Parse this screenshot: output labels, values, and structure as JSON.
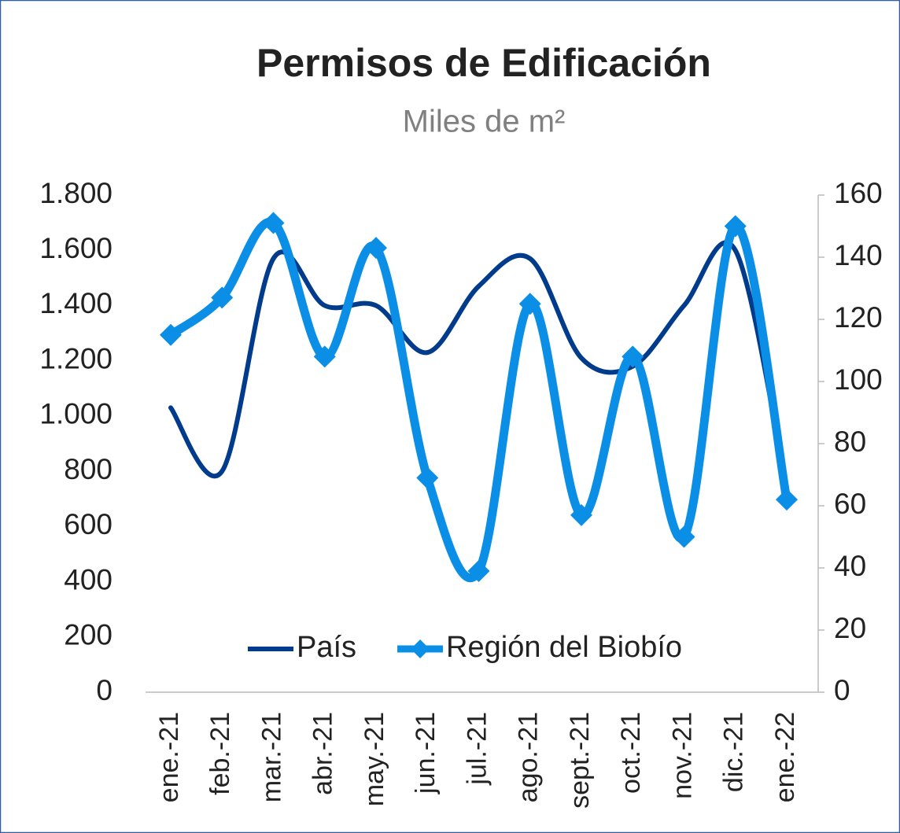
{
  "chart_data": {
    "type": "line",
    "title": "Permisos de Edificación",
    "subtitle": "Miles de m²",
    "categories": [
      "ene.-21",
      "feb.-21",
      "mar.-21",
      "abr.-21",
      "may.-21",
      "jun.-21",
      "jul.-21",
      "ago.-21",
      "sept.-21",
      "oct.-21",
      "nov.-21",
      "dic.-21",
      "ene.-22"
    ],
    "series": [
      {
        "name": "País",
        "color": "#003b8c",
        "values": [
          1030,
          800,
          1570,
          1400,
          1400,
          1230,
          1470,
          1570,
          1210,
          1180,
          1400,
          1600,
          740
        ]
      },
      {
        "name": "Región del Biobío",
        "color": "#0b8fe6",
        "axis": "y2",
        "marker": "diamond",
        "values": [
          115,
          127,
          151,
          108,
          143,
          69,
          39,
          125,
          57,
          108,
          50,
          150,
          62
        ]
      }
    ],
    "ylim": [
      0,
      1800
    ],
    "yticks": [
      0,
      200,
      400,
      600,
      800,
      {
        "value": 1000,
        "label": "1.000"
      },
      {
        "value": 1200,
        "label": "1.200"
      },
      {
        "value": 1400,
        "label": "1.400"
      },
      {
        "value": 1600,
        "label": "1.600"
      },
      {
        "value": 1800,
        "label": "1.800"
      }
    ],
    "y2lim": [
      0,
      160
    ],
    "y2ticks": [
      0,
      20,
      40,
      60,
      80,
      100,
      120,
      140,
      160
    ],
    "smooth": true,
    "legend": "bottom"
  }
}
